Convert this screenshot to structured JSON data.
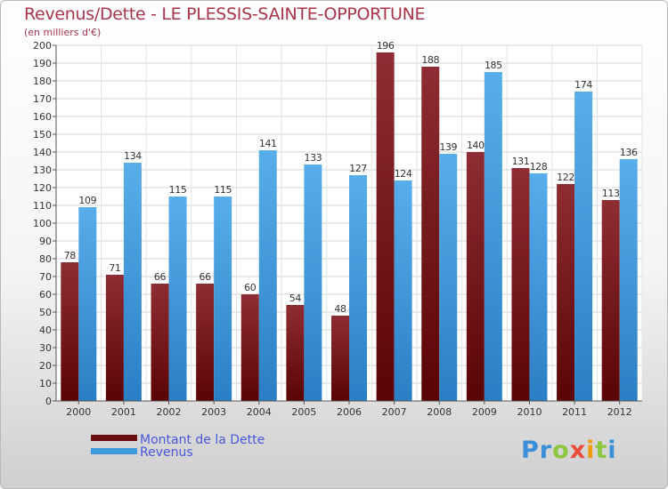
{
  "chart_data": {
    "type": "bar",
    "title": "Revenus/Dette - LE PLESSIS-SAINTE-OPPORTUNE",
    "subtitle": "(en milliers d'€)",
    "categories": [
      "2000",
      "2001",
      "2002",
      "2003",
      "2004",
      "2005",
      "2006",
      "2007",
      "2008",
      "2009",
      "2010",
      "2011",
      "2012"
    ],
    "series": [
      {
        "name": "Montant de la Dette",
        "color": "#8a1f26",
        "values": [
          78,
          71,
          66,
          66,
          60,
          54,
          48,
          196,
          188,
          140,
          131,
          122,
          113
        ]
      },
      {
        "name": "Revenus",
        "color": "#3f9be0",
        "values": [
          109,
          134,
          115,
          115,
          141,
          133,
          127,
          124,
          139,
          185,
          128,
          174,
          136
        ]
      }
    ],
    "ylim": [
      0,
      200
    ],
    "ytick_step": 10,
    "grid": true,
    "legend_position": "bottom-left"
  },
  "logo": {
    "letters": [
      {
        "ch": "P",
        "color": "#3a8fd8"
      },
      {
        "ch": "r",
        "color": "#3a8fd8"
      },
      {
        "ch": "o",
        "color": "#8dc63f"
      },
      {
        "ch": "x",
        "color": "#e94b3c"
      },
      {
        "ch": "i",
        "color": "#f39c12"
      },
      {
        "ch": "t",
        "color": "#8dc63f"
      },
      {
        "ch": "i",
        "color": "#3a8fd8"
      }
    ]
  }
}
